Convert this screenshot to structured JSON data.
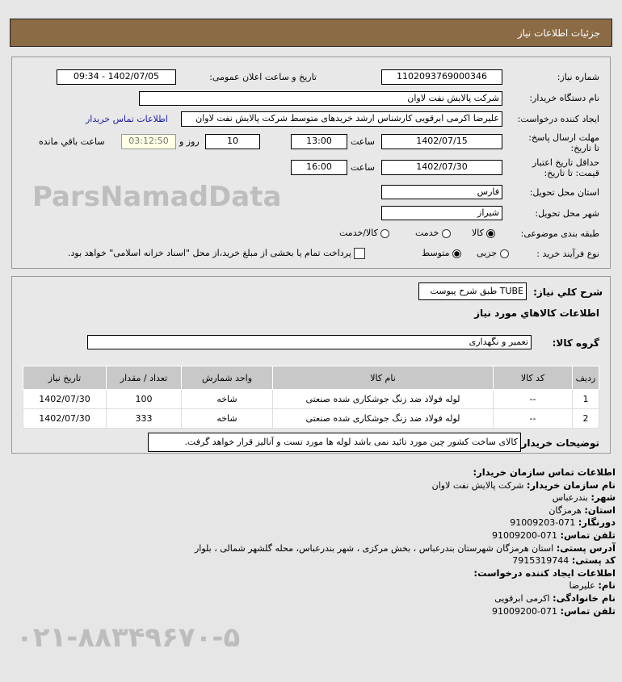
{
  "header": {
    "title": "جزئیات اطلاعات نیاز"
  },
  "need": {
    "number_label": "شماره نیاز:",
    "number": "1102093769000346",
    "announce_label": "تاریخ و ساعت اعلان عمومی:",
    "announce": "1402/07/05 - 09:34",
    "buyer_label": "نام دستگاه خریدار:",
    "buyer": "شرکت پالایش نفت لاوان",
    "creator_label": "ایجاد کننده درخواست:",
    "creator": "علیرضا اکرمی ابرقویی کارشناس ارشد خریدهای متوسط شرکت پالایش نفت لاوان",
    "contact_link": "اطلاعات تماس خریدار",
    "deadline_label": "مهلت ارسال پاسخ: تا تاریخ:",
    "deadline_date": "1402/07/15",
    "time_label": "ساعت",
    "deadline_time": "13:00",
    "days": "10",
    "days_label": "روز و",
    "remaining": "03:12:50",
    "remaining_label": "ساعت باقي مانده",
    "validity_label": "حداقل تاریخ اعتبار قیمت: تا تاریخ:",
    "validity_date": "1402/07/30",
    "validity_time": "16:00",
    "province_label": "استان محل تحویل:",
    "province": "فارس",
    "city_label": "شهر محل تحویل:",
    "city": "شیراز",
    "category_label": "طبقه بندی موضوعی:",
    "category_options": [
      "کالا",
      "خدمت",
      "کالا/خدمت"
    ],
    "category_selected": "کالا",
    "process_label": "نوع فرآیند خرید :",
    "process_options": [
      "جزیی",
      "متوسط"
    ],
    "process_selected": "متوسط",
    "payment_note": "پرداخت تمام یا بخشی از مبلغ خرید،از محل \"اسناد خزانه اسلامی\" خواهد بود."
  },
  "goods": {
    "summary_label": "شرح کلي نياز:",
    "summary": "TUBE طبق شرح پیوست",
    "heading": "اطلاعات کالاهاي مورد نياز",
    "group_label": "گروه کالا:",
    "group": "تعمیر و نگهداری",
    "columns": [
      "ردیف",
      "کد کالا",
      "نام کالا",
      "واحد شمارش",
      "تعداد / مقدار",
      "تاریخ نیاز"
    ],
    "rows": [
      [
        "1",
        "--",
        "لوله فولاد ضد زنگ جوشکاری شده صنعتی",
        "شاخه",
        "100",
        "1402/07/30"
      ],
      [
        "2",
        "--",
        "لوله فولاد ضد زنگ جوشکاری شده صنعتی",
        "شاخه",
        "333",
        "1402/07/30"
      ]
    ],
    "notes_label": "توضیحات خریدار:",
    "notes": "کالای ساخت کشور چین مورد تائید نمی باشد لوله ها مورد تست و آنالیز قرار خواهد گرفت."
  },
  "contact": {
    "title": "اطلاعات تماس سازمان خریدار:",
    "org_label": "نام سازمان خریدار:",
    "org": "شرکت پالایش نفت لاوان",
    "city_label": "شهر:",
    "city": "بندرعباس",
    "province_label": "استان:",
    "province": "هرمزگان",
    "fax_label": "دورنگار:",
    "fax": "071-91009203",
    "phone_label": "تلفن تماس:",
    "phone": "071-91009200",
    "address_label": "آدرس پستی:",
    "address": "استان هرمزگان شهرستان بندرعباس ، بخش مرکزی ، شهر بندرعباس، محله گلشهر شمالی ، بلوار",
    "postal_label": "کد پستی:",
    "postal": "7915319744",
    "creator_title": "اطلاعات ایجاد کننده درخواست:",
    "name_label": "نام:",
    "name": "علیرضا",
    "family_label": "نام خانوادگی:",
    "family": "اکرمی ابرقویی",
    "creator_phone_label": "تلفن تماس:",
    "creator_phone": "071-91009200"
  },
  "watermark": {
    "text": "ParsNamadData",
    "phone": "۰۲۱-۸۸۳۴۹۶۷۰-۵"
  }
}
